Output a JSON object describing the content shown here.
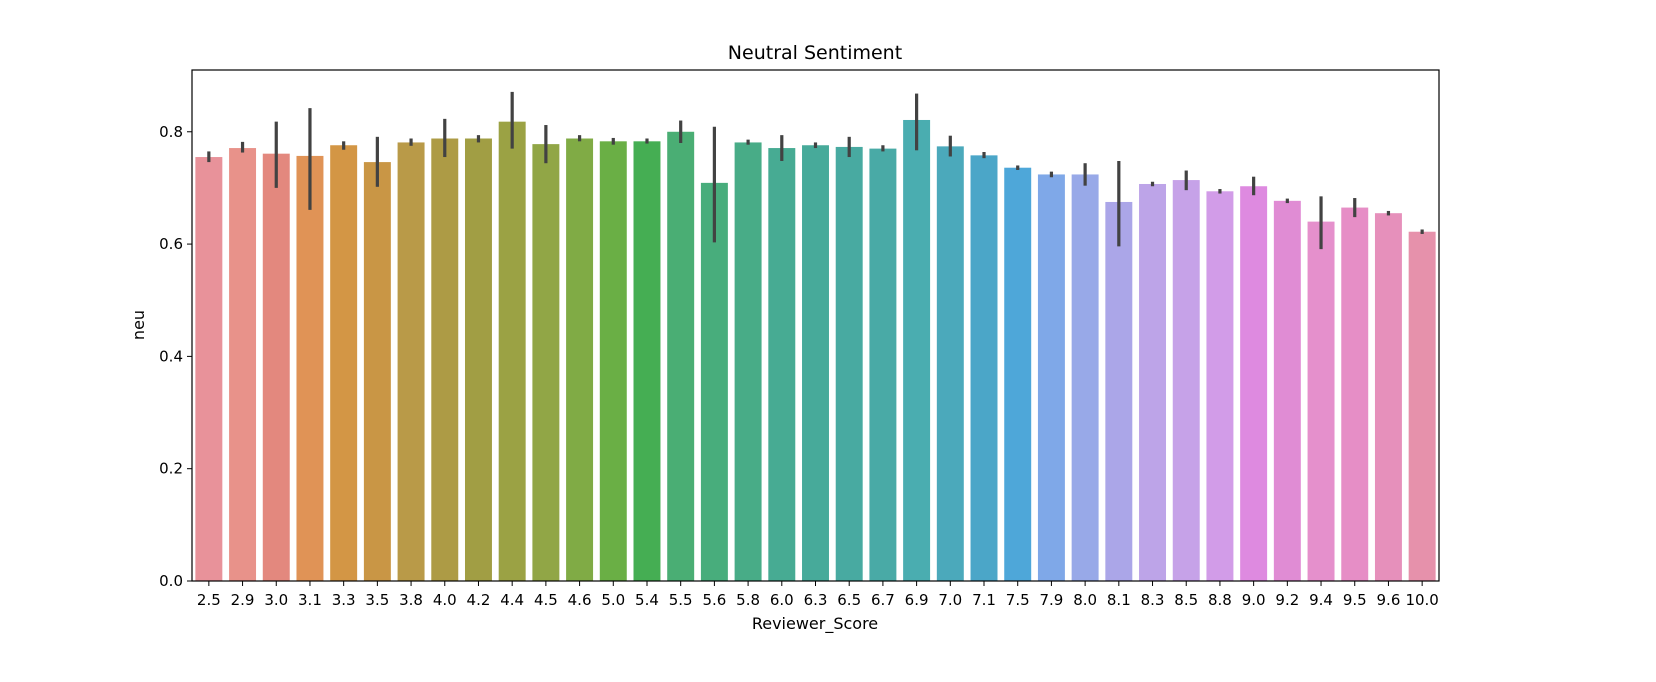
{
  "chart_data": {
    "type": "bar",
    "title": "Neutral Sentiment",
    "xlabel": "Reviewer_Score",
    "ylabel": "neu",
    "ylim": [
      0,
      0.91
    ],
    "yticks": [
      0.0,
      0.2,
      0.4,
      0.6,
      0.8
    ],
    "ytick_labels": [
      "0.0",
      "0.2",
      "0.4",
      "0.6",
      "0.8"
    ],
    "categories": [
      "2.5",
      "2.9",
      "3.0",
      "3.1",
      "3.3",
      "3.5",
      "3.8",
      "4.0",
      "4.2",
      "4.4",
      "4.5",
      "4.6",
      "5.0",
      "5.4",
      "5.5",
      "5.6",
      "5.8",
      "6.0",
      "6.3",
      "6.5",
      "6.7",
      "6.9",
      "7.0",
      "7.1",
      "7.5",
      "7.9",
      "8.0",
      "8.1",
      "8.3",
      "8.5",
      "8.8",
      "9.0",
      "9.2",
      "9.4",
      "9.5",
      "9.6",
      "10.0"
    ],
    "values": [
      0.755,
      0.771,
      0.761,
      0.757,
      0.776,
      0.746,
      0.781,
      0.788,
      0.788,
      0.818,
      0.778,
      0.788,
      0.783,
      0.783,
      0.8,
      0.709,
      0.781,
      0.771,
      0.776,
      0.773,
      0.77,
      0.821,
      0.774,
      0.758,
      0.736,
      0.724,
      0.724,
      0.675,
      0.707,
      0.714,
      0.694,
      0.703,
      0.677,
      0.64,
      0.665,
      0.655,
      0.622
    ],
    "error_low": [
      0.746,
      0.763,
      0.7,
      0.661,
      0.768,
      0.702,
      0.775,
      0.755,
      0.781,
      0.77,
      0.744,
      0.783,
      0.777,
      0.779,
      0.78,
      0.603,
      0.777,
      0.748,
      0.771,
      0.755,
      0.765,
      0.767,
      0.756,
      0.753,
      0.732,
      0.719,
      0.704,
      0.596,
      0.703,
      0.696,
      0.69,
      0.687,
      0.673,
      0.591,
      0.648,
      0.651,
      0.618
    ],
    "error_high": [
      0.765,
      0.782,
      0.818,
      0.842,
      0.783,
      0.791,
      0.788,
      0.823,
      0.794,
      0.871,
      0.812,
      0.794,
      0.789,
      0.788,
      0.82,
      0.809,
      0.786,
      0.794,
      0.781,
      0.791,
      0.776,
      0.868,
      0.793,
      0.764,
      0.74,
      0.729,
      0.744,
      0.748,
      0.711,
      0.731,
      0.698,
      0.72,
      0.681,
      0.685,
      0.682,
      0.659,
      0.626
    ],
    "colors": [
      "#e8929a",
      "#e8928a",
      "#e3887e",
      "#e09356",
      "#d39645",
      "#c99645",
      "#b99a48",
      "#ad9b45",
      "#a19e44",
      "#9ba244",
      "#91a646",
      "#80ab45",
      "#6aaf45",
      "#45ae53",
      "#4aae74",
      "#48ad7c",
      "#48ac87",
      "#47ab93",
      "#47aa9a",
      "#48aaa1",
      "#49aaa6",
      "#4aadb0",
      "#4ba9bb",
      "#4ba6c8",
      "#4ea7d9",
      "#7fa8e8",
      "#98a9e8",
      "#aba6e8",
      "#bda4e8",
      "#c6a2e8",
      "#d29ce8",
      "#de8ae0",
      "#e08cd4",
      "#e590cc",
      "#e68ec6",
      "#e690bb",
      "#e691ab"
    ],
    "error_bar_color": "#424242"
  }
}
